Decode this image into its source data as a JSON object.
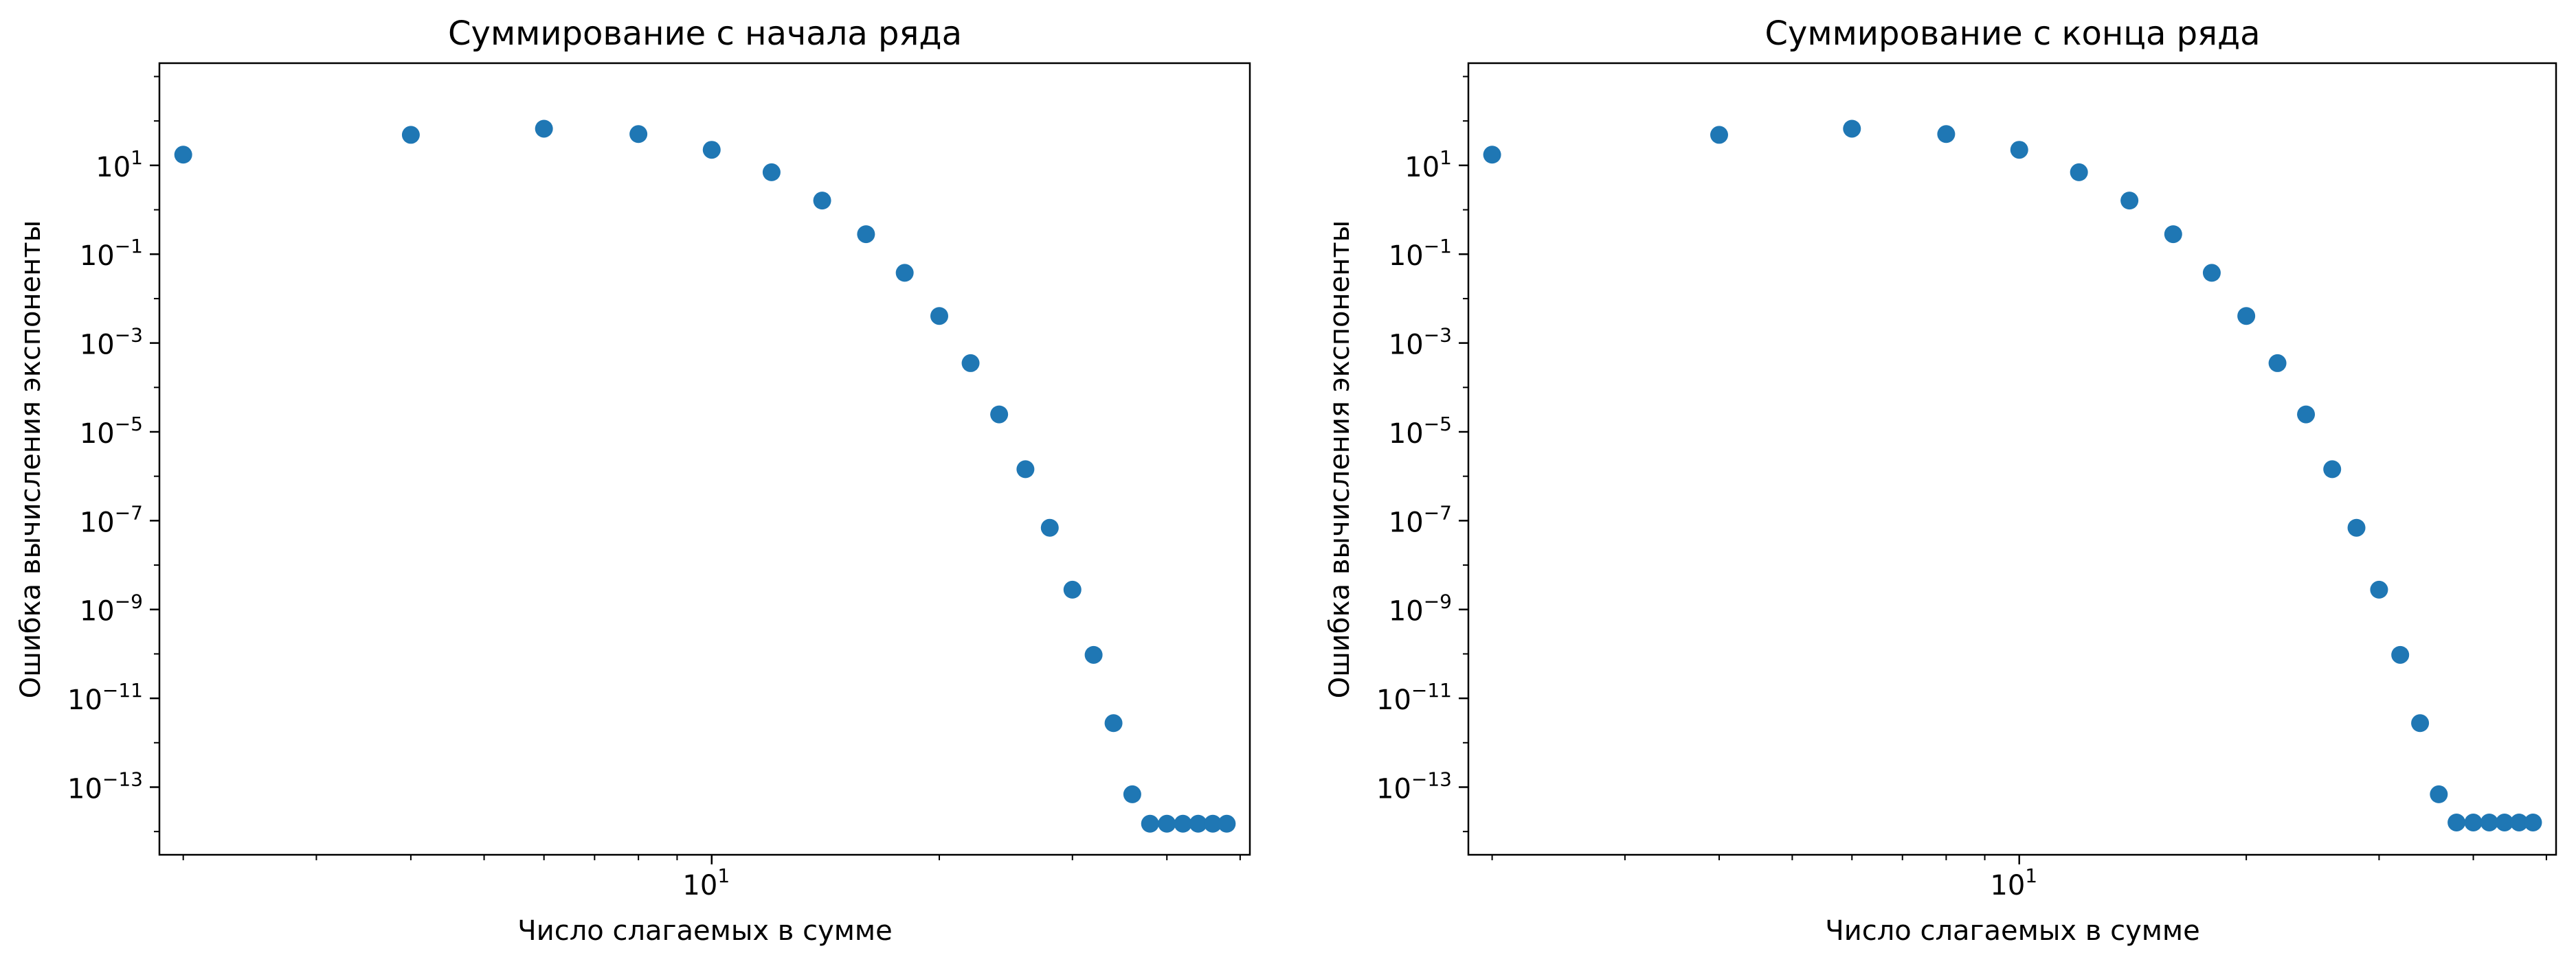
{
  "chart_data": [
    {
      "type": "scatter",
      "title": "Суммирование с начала ряда",
      "xlabel": "Число слагаемых в сумме",
      "ylabel": "Ошибка вычисления экспоненты",
      "xscale": "log",
      "yscale": "log",
      "xlim": [
        1.86,
        51.5
      ],
      "ylim": [
        3e-15,
        2000
      ],
      "xticks": [
        {
          "value": 10,
          "base": "10",
          "exp": "1"
        }
      ],
      "yticks": [
        {
          "value": 10,
          "base": "10",
          "exp": "1"
        },
        {
          "value": 0.1,
          "base": "10",
          "exp": "−1"
        },
        {
          "value": 0.001,
          "base": "10",
          "exp": "−3"
        },
        {
          "value": 1e-05,
          "base": "10",
          "exp": "−5"
        },
        {
          "value": 1e-07,
          "base": "10",
          "exp": "−7"
        },
        {
          "value": 1e-09,
          "base": "10",
          "exp": "−9"
        },
        {
          "value": 1e-11,
          "base": "10",
          "exp": "−11"
        },
        {
          "value": 1e-13,
          "base": "10",
          "exp": "−13"
        }
      ],
      "grid": false,
      "marker_color": "#1f77b4",
      "x": [
        2,
        4,
        6,
        8,
        10,
        12,
        14,
        16,
        18,
        20,
        22,
        24,
        26,
        28,
        30,
        32,
        34,
        36,
        38,
        40,
        42,
        44,
        46,
        48
      ],
      "y": [
        17.4,
        48.6,
        66.9,
        50.6,
        22.4,
        6.99,
        1.61,
        0.282,
        0.038,
        0.00406,
        0.000352,
        2.47e-05,
        1.44e-06,
        6.92e-08,
        2.79e-09,
        9.5e-11,
        2.76e-12,
        6.9e-14,
        1.5e-14,
        1.5e-14,
        1.5e-14,
        1.5e-14,
        1.5e-14,
        1.5e-14
      ]
    },
    {
      "type": "scatter",
      "title": "Суммирование с конца ряда",
      "xlabel": "Число слагаемых в сумме",
      "ylabel": "Ошибка вычисления экспоненты",
      "xscale": "log",
      "yscale": "log",
      "xlim": [
        1.86,
        51.5
      ],
      "ylim": [
        3e-15,
        2000
      ],
      "xticks": [
        {
          "value": 10,
          "base": "10",
          "exp": "1"
        }
      ],
      "yticks": [
        {
          "value": 10,
          "base": "10",
          "exp": "1"
        },
        {
          "value": 0.1,
          "base": "10",
          "exp": "−1"
        },
        {
          "value": 0.001,
          "base": "10",
          "exp": "−3"
        },
        {
          "value": 1e-05,
          "base": "10",
          "exp": "−5"
        },
        {
          "value": 1e-07,
          "base": "10",
          "exp": "−7"
        },
        {
          "value": 1e-09,
          "base": "10",
          "exp": "−9"
        },
        {
          "value": 1e-11,
          "base": "10",
          "exp": "−11"
        },
        {
          "value": 1e-13,
          "base": "10",
          "exp": "−13"
        }
      ],
      "grid": false,
      "marker_color": "#1f77b4",
      "x": [
        2,
        4,
        6,
        8,
        10,
        12,
        14,
        16,
        18,
        20,
        22,
        24,
        26,
        28,
        30,
        32,
        34,
        36,
        38,
        40,
        42,
        44,
        46,
        48
      ],
      "y": [
        17.4,
        48.6,
        66.9,
        50.6,
        22.4,
        6.99,
        1.61,
        0.282,
        0.038,
        0.00406,
        0.000352,
        2.47e-05,
        1.44e-06,
        6.92e-08,
        2.79e-09,
        9.5e-11,
        2.76e-12,
        6.9e-14,
        1.6e-14,
        1.6e-14,
        1.6e-14,
        1.6e-14,
        1.6e-14,
        1.6e-14
      ]
    }
  ]
}
